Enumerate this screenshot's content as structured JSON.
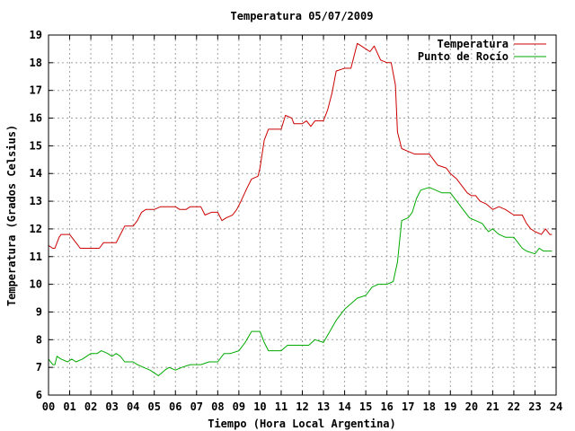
{
  "chart_data": {
    "type": "line",
    "title": "Temperatura 05/07/2009",
    "xlabel": "Tiempo (Hora Local Argentina)",
    "ylabel": "Temperatura (Grados Celsius)",
    "xlim": [
      0,
      24
    ],
    "ylim": [
      6,
      19
    ],
    "x_ticks": [
      "00",
      "01",
      "02",
      "03",
      "04",
      "05",
      "06",
      "07",
      "08",
      "09",
      "10",
      "11",
      "12",
      "13",
      "14",
      "15",
      "16",
      "17",
      "18",
      "19",
      "20",
      "21",
      "22",
      "23",
      "24"
    ],
    "y_ticks": [
      "6",
      "7",
      "8",
      "9",
      "10",
      "11",
      "12",
      "13",
      "14",
      "15",
      "16",
      "17",
      "18",
      "19"
    ],
    "grid": true,
    "legend_position": "top-right",
    "series": [
      {
        "name": "Temperatura",
        "color": "#cc0000",
        "points": [
          [
            0.0,
            11.4
          ],
          [
            0.2,
            11.3
          ],
          [
            0.3,
            11.3
          ],
          [
            0.5,
            11.7
          ],
          [
            0.6,
            11.8
          ],
          [
            1.0,
            11.8
          ],
          [
            1.3,
            11.5
          ],
          [
            1.5,
            11.3
          ],
          [
            2.0,
            11.3
          ],
          [
            2.4,
            11.3
          ],
          [
            2.6,
            11.5
          ],
          [
            3.0,
            11.5
          ],
          [
            3.2,
            11.5
          ],
          [
            3.4,
            11.8
          ],
          [
            3.6,
            12.1
          ],
          [
            4.0,
            12.1
          ],
          [
            4.2,
            12.3
          ],
          [
            4.4,
            12.6
          ],
          [
            4.6,
            12.7
          ],
          [
            5.0,
            12.7
          ],
          [
            5.3,
            12.8
          ],
          [
            5.6,
            12.8
          ],
          [
            6.0,
            12.8
          ],
          [
            6.2,
            12.7
          ],
          [
            6.5,
            12.7
          ],
          [
            6.7,
            12.8
          ],
          [
            7.0,
            12.8
          ],
          [
            7.2,
            12.8
          ],
          [
            7.4,
            12.5
          ],
          [
            7.7,
            12.6
          ],
          [
            8.0,
            12.6
          ],
          [
            8.2,
            12.3
          ],
          [
            8.4,
            12.4
          ],
          [
            8.7,
            12.5
          ],
          [
            8.9,
            12.7
          ],
          [
            9.1,
            13.0
          ],
          [
            9.4,
            13.5
          ],
          [
            9.6,
            13.8
          ],
          [
            9.9,
            13.9
          ],
          [
            10.0,
            14.2
          ],
          [
            10.2,
            15.2
          ],
          [
            10.4,
            15.6
          ],
          [
            10.7,
            15.6
          ],
          [
            11.0,
            15.6
          ],
          [
            11.2,
            16.1
          ],
          [
            11.5,
            16.0
          ],
          [
            11.6,
            15.8
          ],
          [
            12.0,
            15.8
          ],
          [
            12.2,
            15.9
          ],
          [
            12.4,
            15.7
          ],
          [
            12.6,
            15.9
          ],
          [
            13.0,
            15.9
          ],
          [
            13.2,
            16.3
          ],
          [
            13.4,
            16.9
          ],
          [
            13.6,
            17.7
          ],
          [
            14.0,
            17.8
          ],
          [
            14.3,
            17.8
          ],
          [
            14.6,
            18.7
          ],
          [
            15.0,
            18.5
          ],
          [
            15.2,
            18.4
          ],
          [
            15.4,
            18.6
          ],
          [
            15.7,
            18.1
          ],
          [
            16.0,
            18.0
          ],
          [
            16.2,
            18.0
          ],
          [
            16.4,
            17.2
          ],
          [
            16.5,
            15.5
          ],
          [
            16.7,
            14.9
          ],
          [
            17.0,
            14.8
          ],
          [
            17.3,
            14.7
          ],
          [
            17.6,
            14.7
          ],
          [
            18.0,
            14.7
          ],
          [
            18.2,
            14.5
          ],
          [
            18.4,
            14.3
          ],
          [
            18.8,
            14.2
          ],
          [
            19.0,
            14.0
          ],
          [
            19.3,
            13.8
          ],
          [
            19.6,
            13.5
          ],
          [
            19.8,
            13.3
          ],
          [
            20.0,
            13.2
          ],
          [
            20.2,
            13.2
          ],
          [
            20.4,
            13.0
          ],
          [
            20.7,
            12.9
          ],
          [
            21.0,
            12.7
          ],
          [
            21.3,
            12.8
          ],
          [
            21.6,
            12.7
          ],
          [
            22.0,
            12.5
          ],
          [
            22.4,
            12.5
          ],
          [
            22.6,
            12.2
          ],
          [
            22.8,
            12.0
          ],
          [
            23.0,
            11.9
          ],
          [
            23.3,
            11.8
          ],
          [
            23.5,
            12.0
          ],
          [
            23.7,
            11.8
          ],
          [
            23.8,
            11.8
          ]
        ]
      },
      {
        "name": "Punto de Rocío",
        "color": "#00aa00",
        "points": [
          [
            0.0,
            7.3
          ],
          [
            0.2,
            7.1
          ],
          [
            0.3,
            7.1
          ],
          [
            0.4,
            7.4
          ],
          [
            0.6,
            7.3
          ],
          [
            0.9,
            7.2
          ],
          [
            1.1,
            7.3
          ],
          [
            1.3,
            7.2
          ],
          [
            1.6,
            7.3
          ],
          [
            2.0,
            7.5
          ],
          [
            2.3,
            7.5
          ],
          [
            2.5,
            7.6
          ],
          [
            2.8,
            7.5
          ],
          [
            3.0,
            7.4
          ],
          [
            3.2,
            7.5
          ],
          [
            3.4,
            7.4
          ],
          [
            3.6,
            7.2
          ],
          [
            4.0,
            7.2
          ],
          [
            4.2,
            7.1
          ],
          [
            4.5,
            7.0
          ],
          [
            4.8,
            6.9
          ],
          [
            5.0,
            6.8
          ],
          [
            5.2,
            6.7
          ],
          [
            5.5,
            6.9
          ],
          [
            5.7,
            7.0
          ],
          [
            6.0,
            6.9
          ],
          [
            6.3,
            7.0
          ],
          [
            6.7,
            7.1
          ],
          [
            7.0,
            7.1
          ],
          [
            7.2,
            7.1
          ],
          [
            7.6,
            7.2
          ],
          [
            8.0,
            7.2
          ],
          [
            8.3,
            7.5
          ],
          [
            8.6,
            7.5
          ],
          [
            9.0,
            7.6
          ],
          [
            9.3,
            7.9
          ],
          [
            9.6,
            8.3
          ],
          [
            10.0,
            8.3
          ],
          [
            10.2,
            7.9
          ],
          [
            10.4,
            7.6
          ],
          [
            10.7,
            7.6
          ],
          [
            11.0,
            7.6
          ],
          [
            11.3,
            7.8
          ],
          [
            11.6,
            7.8
          ],
          [
            12.0,
            7.8
          ],
          [
            12.3,
            7.8
          ],
          [
            12.6,
            8.0
          ],
          [
            13.0,
            7.9
          ],
          [
            13.3,
            8.3
          ],
          [
            13.6,
            8.7
          ],
          [
            14.0,
            9.1
          ],
          [
            14.3,
            9.3
          ],
          [
            14.6,
            9.5
          ],
          [
            15.0,
            9.6
          ],
          [
            15.3,
            9.9
          ],
          [
            15.6,
            10.0
          ],
          [
            16.0,
            10.0
          ],
          [
            16.3,
            10.1
          ],
          [
            16.5,
            10.8
          ],
          [
            16.7,
            12.3
          ],
          [
            17.0,
            12.4
          ],
          [
            17.2,
            12.6
          ],
          [
            17.4,
            13.1
          ],
          [
            17.6,
            13.4
          ],
          [
            18.0,
            13.5
          ],
          [
            18.3,
            13.4
          ],
          [
            18.6,
            13.3
          ],
          [
            19.0,
            13.3
          ],
          [
            19.3,
            13.0
          ],
          [
            19.6,
            12.7
          ],
          [
            19.9,
            12.4
          ],
          [
            20.2,
            12.3
          ],
          [
            20.5,
            12.2
          ],
          [
            20.8,
            11.9
          ],
          [
            21.0,
            12.0
          ],
          [
            21.3,
            11.8
          ],
          [
            21.6,
            11.7
          ],
          [
            22.0,
            11.7
          ],
          [
            22.2,
            11.5
          ],
          [
            22.4,
            11.3
          ],
          [
            22.6,
            11.2
          ],
          [
            23.0,
            11.1
          ],
          [
            23.2,
            11.3
          ],
          [
            23.4,
            11.2
          ],
          [
            23.6,
            11.2
          ],
          [
            23.8,
            11.2
          ]
        ]
      }
    ]
  }
}
